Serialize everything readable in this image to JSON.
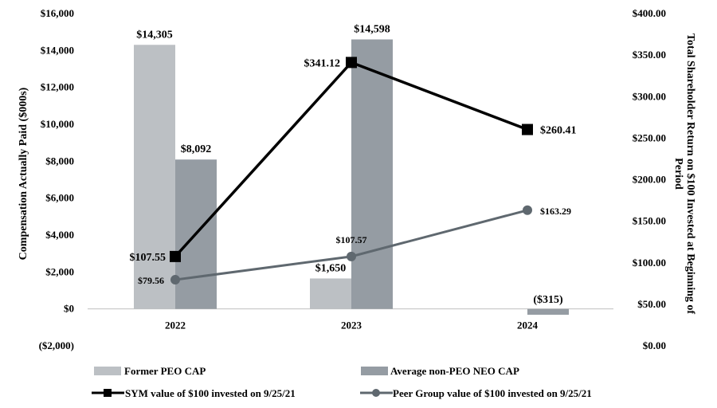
{
  "chart_data": {
    "type": "bar",
    "categories": [
      "2022",
      "2023",
      "2024"
    ],
    "series": [
      {
        "name": "Former PEO CAP",
        "kind": "bar",
        "axis": "left",
        "values": [
          14305,
          1650,
          0
        ],
        "labels": [
          "$14,305",
          "$1,650",
          ""
        ],
        "color": "#bcc0c4"
      },
      {
        "name": "Average non-PEO NEO CAP",
        "kind": "bar",
        "axis": "left",
        "values": [
          8092,
          14598,
          -315
        ],
        "labels": [
          "$8,092",
          "$14,598",
          "($315)"
        ],
        "color": "#959ca3"
      },
      {
        "name": "SYM value of $100 invested on 9/25/21",
        "kind": "line",
        "axis": "right",
        "values": [
          107.55,
          341.12,
          260.41
        ],
        "labels": [
          "$107.55",
          "$341.12",
          "$260.41"
        ],
        "color": "#000000",
        "marker": "square"
      },
      {
        "name": "Peer Group value of $100 invested on 9/25/21",
        "kind": "line",
        "axis": "right",
        "values": [
          79.56,
          107.57,
          163.29
        ],
        "labels": [
          "$79.56",
          "$107.57",
          "$163.29"
        ],
        "color": "#5f686f",
        "marker": "circle"
      }
    ],
    "left_axis": {
      "title": "Compensation Actually Paid ($000s)",
      "range": [
        -2000,
        16000
      ],
      "ticks": [
        -2000,
        0,
        2000,
        4000,
        6000,
        8000,
        10000,
        12000,
        14000,
        16000
      ],
      "tick_labels": [
        "($2,000)",
        "$0",
        "$2,000",
        "$4,000",
        "$6,000",
        "$8,000",
        "$10,000",
        "$12,000",
        "$14,000",
        "$16,000"
      ]
    },
    "right_axis": {
      "title_line1": "Total Shareholder Return on $100 Invested at Beginning of",
      "title_line2": "Period",
      "range": [
        0,
        400
      ],
      "ticks": [
        0,
        50,
        100,
        150,
        200,
        250,
        300,
        350,
        400
      ],
      "tick_labels": [
        "$0.00",
        "$50.00",
        "$100.00",
        "$150.00",
        "$200.00",
        "$250.00",
        "$300.00",
        "$350.00",
        "$400.00"
      ]
    },
    "legend_position": "bottom",
    "grid": false
  }
}
